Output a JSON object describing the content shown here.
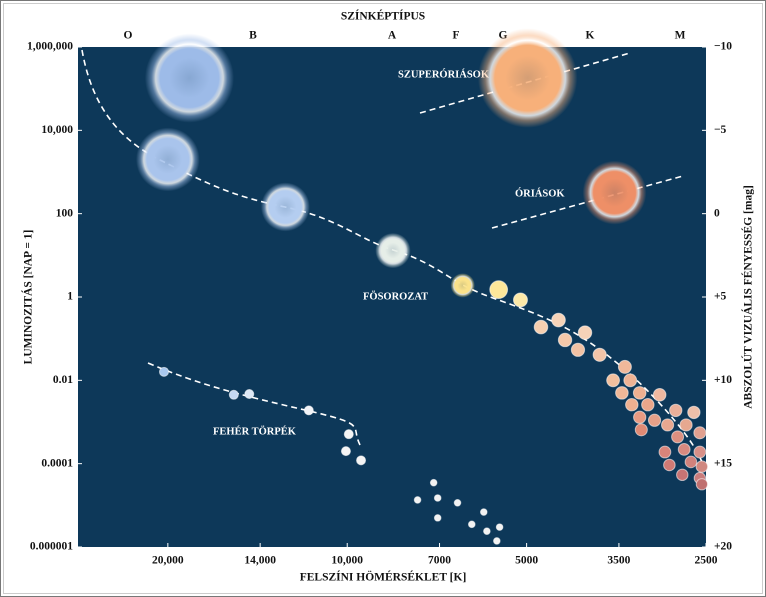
{
  "chart_data": {
    "type": "scatter",
    "x2_label": "SZÍNKÉPTÍPUS",
    "x2_categories": [
      "O",
      "B",
      "A",
      "F",
      "G",
      "K",
      "M"
    ],
    "xlabel": "FELSZÍNI HÖMÉRSÉKLET [K]",
    "ylabel": "LUMINOZITÁS [NAP = 1]",
    "y2label": "ABSZOLÚT VIZUÁLIS FÉNYESSÉG [mag]",
    "xscale": "log",
    "yscale": "log",
    "xlim": [
      28300,
      2500
    ],
    "ylim": [
      1e-06,
      1000000
    ],
    "y2lim": [
      20,
      -10
    ],
    "xticks": [
      {
        "value": 20000,
        "label": "20,000"
      },
      {
        "value": 14000,
        "label": "14,000"
      },
      {
        "value": 10000,
        "label": "10,000"
      },
      7000,
      5000,
      3500,
      2500
    ],
    "yticks": [
      {
        "value": 1000000,
        "label": "1,000,000"
      },
      {
        "value": 10000,
        "label": "10,000"
      },
      100,
      1,
      0.01,
      0.0001,
      1e-06
    ],
    "y2ticks": [
      {
        "value": -10,
        "label": "−10"
      },
      {
        "value": -5,
        "label": "−5"
      },
      0,
      {
        "value": 5,
        "label": "+5"
      },
      {
        "value": 10,
        "label": "+10"
      },
      {
        "value": 15,
        "label": "+15"
      },
      {
        "value": 20,
        "label": "+20"
      }
    ],
    "annotations": [
      "SZUPERÓRIÁSOK",
      "ÓRIÁSOK",
      "FÖSOROZAT",
      "FEHÉR TÖRPÉK"
    ],
    "series": [
      {
        "color": "#f0b89a",
        "x": [
          18400,
          20000,
          12700,
          8380,
          6400,
          5570,
          5120,
          4730,
          4420,
          4310,
          3990,
          4100,
          3770,
          3420,
          3580,
          3350,
          3460,
          3230,
          3330,
          3130,
          2990,
          2810,
          2620,
          3230,
          3050,
          2900,
          2700,
          3210,
          2790,
          2560,
          2930,
          2720,
          2560,
          2880,
          2650,
          2540,
          2740,
          2560,
          2540
        ],
        "values": [
          180000,
          2000,
          145,
          13,
          1.9,
          1.5,
          0.85,
          0.19,
          0.28,
          0.093,
          0.14,
          0.054,
          0.041,
          0.021,
          0.01,
          0.01,
          0.005,
          0.005,
          0.0026,
          0.0026,
          0.0045,
          0.0019,
          0.0017,
          0.0013,
          0.0011,
          0.00085,
          0.00085,
          0.00065,
          0.00044,
          0.00055,
          0.00019,
          0.00022,
          0.00019,
          9.3e-05,
          0.00011,
          8.5e-05,
          5.4e-05,
          4.5e-05,
          3.2e-05
        ],
        "colors": [
          "#9dbbe8",
          "#a9c4ec",
          "#b4cdf0",
          "#e6eee8",
          "#fbe28a",
          "#fde79a",
          "#fde9a8",
          "#f6cfb0",
          "#f6d3b8",
          "#f4c8aa",
          "#f6d2b8",
          "#f2c2a4",
          "#f2c4a8",
          "#f0b89a",
          "#f2c09e",
          "#efb394",
          "#f0b898",
          "#eeb090",
          "#eeb090",
          "#eaa68a",
          "#eeb8a0",
          "#eab09a",
          "#eec0aa",
          "#e89a82",
          "#e6a088",
          "#e8a890",
          "#e6a890",
          "#e08a74",
          "#dc9080",
          "#e0a090",
          "#d8847a",
          "#d88a80",
          "#d89088",
          "#d07a74",
          "#d0827c",
          "#d08880",
          "#c87474",
          "#c87c7c",
          "#c07070"
        ]
      },
      {
        "color": "#ee8f67",
        "x": [
          4980,
          3560
        ],
        "values": [
          180000,
          320
        ],
        "colors": [
          "#f7b07a",
          "#ee8f67"
        ]
      },
      {
        "color": "#cfe0f5",
        "x": [
          20300,
          15500,
          14600,
          11600,
          9940,
          10050,
          9480
        ],
        "values": [
          0.016,
          0.0045,
          0.0047,
          0.0019,
          0.00051,
          0.0002,
          0.00012
        ],
        "colors": [
          "#a9c8ee",
          "#c4d8f2",
          "#dde8f6",
          "#f2f4f8",
          "#f4f4f4",
          "#f4f4f4",
          "#f4f4f4"
        ]
      },
      {
        "color": "#f2f2f2",
        "x": [
          7620,
          7160,
          7050,
          6530,
          7050,
          6180,
          5900,
          5830,
          5550,
          5610
        ],
        "values": [
          1.35e-05,
          3.5e-05,
          1.5e-05,
          1.15e-05,
          5e-06,
          3.5e-06,
          6.9e-06,
          2.4e-06,
          3e-06,
          1.4e-06
        ]
      }
    ]
  }
}
